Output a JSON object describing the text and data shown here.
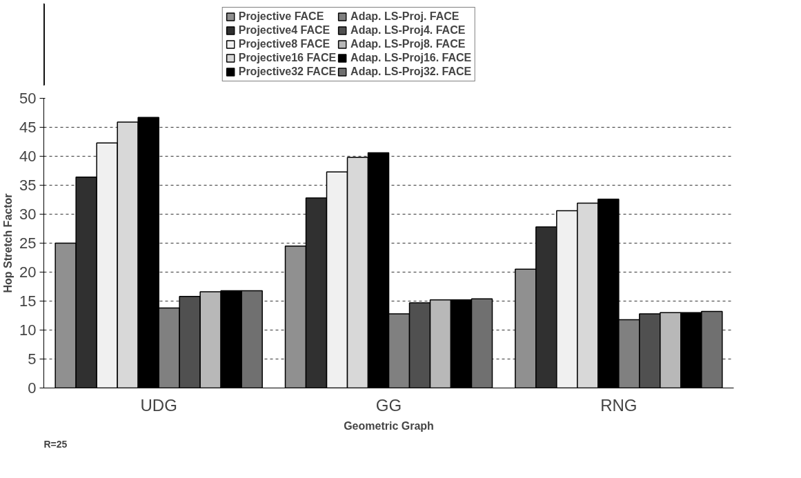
{
  "chart_data": {
    "type": "bar",
    "xlabel": "Geometric Graph",
    "ylabel": "Hop Stretch Factor",
    "categories": [
      "UDG",
      "GG",
      "RNG"
    ],
    "series": [
      {
        "name": "Projective FACE",
        "color": "#909090",
        "values": [
          25.0,
          24.5,
          20.5
        ]
      },
      {
        "name": "Projective4 FACE",
        "color": "#303030",
        "values": [
          36.4,
          32.8,
          27.8
        ]
      },
      {
        "name": "Projective8 FACE",
        "color": "#f0f0f0",
        "values": [
          42.3,
          37.3,
          30.6
        ]
      },
      {
        "name": "Projective16 FACE",
        "color": "#d8d8d8",
        "values": [
          45.9,
          39.8,
          31.9
        ]
      },
      {
        "name": "Projective32 FACE",
        "color": "#000000",
        "values": [
          46.7,
          40.6,
          32.6
        ]
      },
      {
        "name": "Adap. LS-Proj. FACE",
        "color": "#808080",
        "values": [
          13.8,
          12.8,
          11.8
        ]
      },
      {
        "name": "Adap. LS-Proj4. FACE",
        "color": "#505050",
        "values": [
          15.8,
          14.7,
          12.8
        ]
      },
      {
        "name": "Adap. LS-Proj8. FACE",
        "color": "#b8b8b8",
        "values": [
          16.6,
          15.2,
          13.0
        ]
      },
      {
        "name": "Adap. LS-Proj16. FACE",
        "color": "#000000",
        "values": [
          16.8,
          15.2,
          13.0
        ]
      },
      {
        "name": "Adap. LS-Proj32. FACE",
        "color": "#707070",
        "values": [
          16.8,
          15.4,
          13.2
        ]
      }
    ],
    "ylim": [
      0,
      50
    ],
    "yticks": [
      0,
      5,
      10,
      15,
      20,
      25,
      30,
      35,
      40,
      45,
      50
    ],
    "grid": "y",
    "legend": "top",
    "annotations": [
      "R=25"
    ]
  }
}
